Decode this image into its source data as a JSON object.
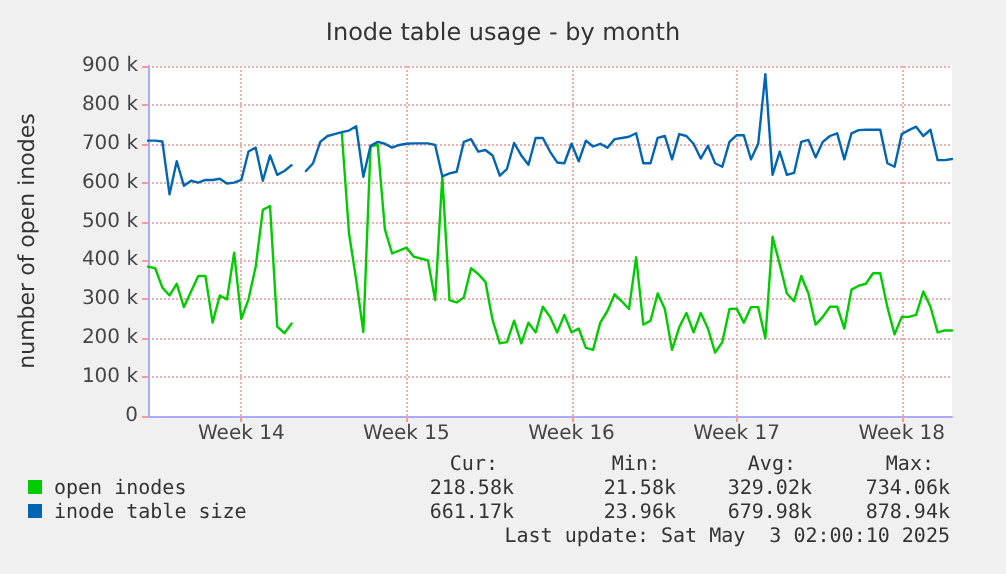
{
  "chart_data": {
    "type": "line",
    "title": "Inode table usage - by month",
    "ylabel": "number of open inodes",
    "categories": [
      null,
      null,
      null,
      null,
      null,
      null,
      null,
      null,
      null,
      null,
      null,
      null,
      null,
      "Week 14",
      null,
      null,
      null,
      null,
      null,
      null,
      null,
      null,
      null,
      null,
      null,
      null,
      null,
      null,
      null,
      null,
      null,
      null,
      null,
      null,
      null,
      null,
      "Week 15",
      null,
      null,
      null,
      null,
      null,
      null,
      null,
      null,
      null,
      null,
      null,
      null,
      null,
      null,
      null,
      null,
      null,
      null,
      null,
      null,
      null,
      null,
      "Week 16",
      null,
      null,
      null,
      null,
      null,
      null,
      null,
      null,
      null,
      null,
      null,
      null,
      null,
      null,
      null,
      null,
      null,
      null,
      null,
      null,
      null,
      null,
      "Week 17",
      null,
      null,
      null,
      null,
      null,
      null,
      null,
      null,
      null,
      null,
      null,
      null,
      null,
      null,
      null,
      null,
      null,
      null,
      null,
      null,
      null,
      null,
      "Week 18",
      null,
      null,
      null,
      null,
      null,
      null,
      null
    ],
    "ylim": [
      0,
      900000
    ],
    "yticks": [
      {
        "value": 0,
        "label": "0"
      },
      {
        "value": 100000,
        "label": "100 k"
      },
      {
        "value": 200000,
        "label": "200 k"
      },
      {
        "value": 300000,
        "label": "300 k"
      },
      {
        "value": 400000,
        "label": "400 k"
      },
      {
        "value": 500000,
        "label": "500 k"
      },
      {
        "value": 600000,
        "label": "600 k"
      },
      {
        "value": 700000,
        "label": "700 k"
      },
      {
        "value": 800000,
        "label": "800 k"
      },
      {
        "value": 900000,
        "label": "900 k"
      }
    ],
    "grid": true,
    "legend": "bottom",
    "marker": "none",
    "line_style": "solid",
    "annotations": [
      "Cur:",
      "Min:",
      "Avg:",
      "Max:",
      "218.58k",
      "21.58k",
      "329.02k",
      "734.06k",
      "661.17k",
      "23.96k",
      "679.98k",
      "878.94k",
      "Last update: Sat May  3 02:00:10 2025"
    ],
    "series": [
      {
        "name": "open inodes",
        "color": "#00cc00",
        "values": [
          384000,
          380000,
          330000,
          310000,
          340000,
          280000,
          320000,
          360000,
          360000,
          240000,
          310000,
          300000,
          420000,
          250000,
          300000,
          384000,
          530000,
          540000,
          230000,
          213000,
          238000,
          null,
          null,
          null,
          null,
          null,
          null,
          727000,
          470000,
          350000,
          216000,
          693000,
          698000,
          480000,
          418000,
          425000,
          433000,
          410000,
          405000,
          400000,
          298000,
          616000,
          298000,
          292000,
          305000,
          380000,
          365000,
          345000,
          247000,
          187000,
          190000,
          245000,
          187000,
          240000,
          215000,
          281000,
          255000,
          215000,
          260000,
          215000,
          225000,
          175000,
          170000,
          240000,
          270000,
          313000,
          295000,
          275000,
          408000,
          235000,
          245000,
          315000,
          275000,
          170000,
          228000,
          265000,
          215000,
          265000,
          225000,
          163000,
          190000,
          275000,
          276000,
          240000,
          280000,
          280000,
          200000,
          461000,
          390000,
          315000,
          295000,
          360000,
          315000,
          235000,
          255000,
          281000,
          281000,
          225000,
          325000,
          335000,
          340000,
          367000,
          367000,
          280000,
          210000,
          255000,
          255000,
          260000,
          320000,
          281000,
          215000,
          220000,
          220000
        ]
      },
      {
        "name": "inode table size",
        "color": "#0066b3",
        "values": [
          708000,
          708000,
          706000,
          570000,
          655000,
          592000,
          605000,
          600000,
          607000,
          607000,
          610000,
          598000,
          600000,
          607000,
          680000,
          690000,
          605000,
          670000,
          620000,
          630000,
          645000,
          null,
          630000,
          650000,
          705000,
          720000,
          725000,
          730000,
          734000,
          745000,
          615000,
          695000,
          705000,
          700000,
          690000,
          697000,
          700000,
          701000,
          701000,
          701000,
          697000,
          616000,
          624000,
          628000,
          705000,
          712000,
          680000,
          684000,
          670000,
          618000,
          635000,
          702000,
          670000,
          646000,
          715000,
          715000,
          680000,
          652000,
          650000,
          700000,
          655000,
          708000,
          693000,
          700000,
          690000,
          712000,
          715000,
          718000,
          727000,
          650000,
          650000,
          715000,
          720000,
          660000,
          725000,
          720000,
          700000,
          662000,
          695000,
          650000,
          641000,
          705000,
          722000,
          722000,
          660000,
          700000,
          879000,
          620000,
          680000,
          620000,
          625000,
          705000,
          710000,
          665000,
          705000,
          720000,
          727000,
          660000,
          727000,
          735000,
          736000,
          736000,
          736000,
          650000,
          641000,
          725000,
          735000,
          744000,
          720000,
          736000,
          658000,
          658000,
          661000
        ]
      }
    ]
  }
}
